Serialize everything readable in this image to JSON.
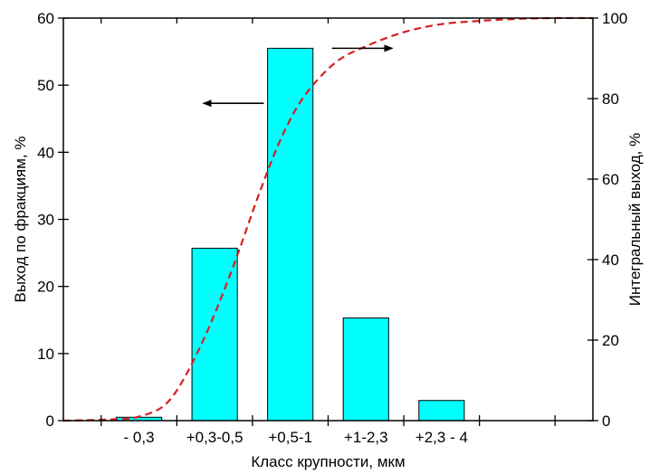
{
  "chart_data": {
    "type": "bar",
    "categories": [
      "- 0,3",
      "+0,3-0,5",
      "+0,5-1",
      "+1-2,3",
      "+2,3 - 4"
    ],
    "series": [
      {
        "axis": "left",
        "type": "bar",
        "values": [
          0.5,
          25.7,
          55.5,
          15.3,
          3.0
        ],
        "color": "#00FFFF"
      },
      {
        "axis": "right",
        "type": "line",
        "line_style": "dashed",
        "color": "#D62020",
        "x": [
          0,
          0.6,
          1.0,
          1.4,
          1.8,
          2.2,
          2.6,
          2.9,
          3.2,
          3.6,
          4.0,
          4.5,
          5.0,
          5.5,
          6.0,
          6.5,
          7.0
        ],
        "y": [
          0,
          0.3,
          1,
          5,
          18,
          36,
          57,
          71,
          81,
          89,
          93,
          96.5,
          98.5,
          99.3,
          99.8,
          100,
          100
        ]
      }
    ],
    "x_positions": [
      1,
      2,
      3,
      4,
      5
    ],
    "xlim": [
      0,
      7
    ],
    "title": "",
    "xlabel": "Класс крупности, мкм",
    "ylabel": "Выход по фракциям, %",
    "ylabel_right": "Интегральный выход, %",
    "ylim": [
      0,
      60
    ],
    "ylim_right": [
      0,
      100
    ],
    "yticks_left": [
      0,
      10,
      20,
      30,
      40,
      50,
      60
    ],
    "yticks_right": [
      0,
      20,
      40,
      60,
      80,
      100
    ],
    "grid": false,
    "legend": "none",
    "annotations": [
      {
        "type": "arrow",
        "direction": "left",
        "points_to_axis": "left",
        "from": [
          2.65,
          47.3
        ],
        "to": [
          1.85,
          47.3
        ]
      },
      {
        "type": "arrow",
        "direction": "right",
        "points_to_axis": "right",
        "from": [
          3.55,
          92.5
        ],
        "to": [
          4.35,
          92.5
        ]
      }
    ]
  }
}
